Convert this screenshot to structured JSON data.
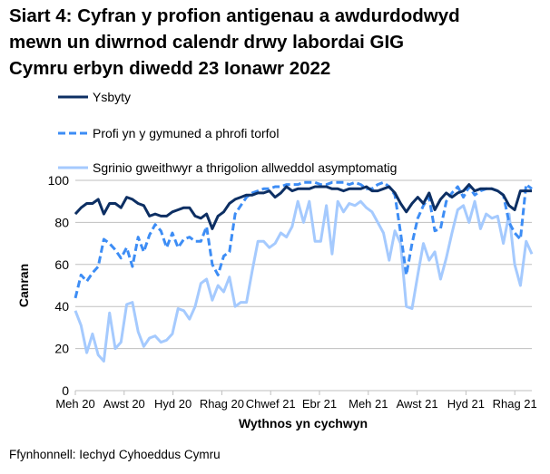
{
  "title_lines": [
    "Siart 4: Cyfran y profion antigenau a awdurdodwyd",
    "mewn un diwrnod calendr drwy labordai GIG",
    "Cymru erbyn diwedd 23 Ionawr 2022"
  ],
  "source": "Ffynhonnell: Iechyd Cyhoeddus Cymru",
  "chart_data": {
    "type": "line",
    "title": "Siart 4: Cyfran y profion antigenau a awdurdodwyd mewn un diwrnod calendr drwy labordai GIG Cymru erbyn diwedd 23 Ionawr 2022",
    "xlabel": "Wythnos yn cychwyn",
    "ylabel": "Canran",
    "ylim": [
      0,
      100
    ],
    "yticks": [
      0,
      20,
      40,
      60,
      80,
      100
    ],
    "xtick_labels": [
      "Meh 20",
      "Awst 20",
      "Hyd 20",
      "Rhag 20",
      "Chwef 21",
      "Ebr 21",
      "Meh 21",
      "Awst 21",
      "Hyd 21",
      "Rhag 21"
    ],
    "grid": "horizontal",
    "legend_placement": "top",
    "series": [
      {
        "name": "Ysbyty",
        "color": "#0d2f63",
        "style": "solid",
        "values": [
          84,
          87,
          89,
          89,
          91,
          84,
          89,
          89,
          87,
          92,
          91,
          89,
          88,
          83,
          84,
          83,
          83,
          85,
          86,
          87,
          87,
          83,
          82,
          84,
          77,
          83,
          85,
          89,
          91,
          92,
          93,
          93,
          94,
          94,
          95,
          92,
          94,
          97,
          95,
          96,
          96,
          96,
          97,
          97,
          97,
          96,
          96,
          95,
          96,
          96,
          96,
          97,
          95,
          95,
          96,
          97,
          94,
          89,
          85,
          89,
          92,
          89,
          94,
          86,
          91,
          94,
          92,
          94,
          95,
          98,
          95,
          96,
          96,
          96,
          95,
          93,
          88,
          86,
          95,
          95,
          95
        ]
      },
      {
        "name": "Profi yn y gymuned a phrofi torfol",
        "color": "#3d8df5",
        "style": "dashed",
        "values": [
          44,
          55,
          52,
          56,
          59,
          72,
          70,
          67,
          63,
          68,
          59,
          73,
          66,
          74,
          79,
          76,
          68,
          75,
          68,
          72,
          73,
          71,
          71,
          78,
          60,
          55,
          64,
          66,
          84,
          88,
          92,
          94,
          95,
          96,
          96,
          97,
          97,
          98,
          98,
          98,
          99,
          99,
          99,
          98,
          98,
          99,
          99,
          99,
          98,
          99,
          98,
          96,
          96,
          98,
          99,
          97,
          93,
          75,
          55,
          70,
          82,
          88,
          92,
          76,
          77,
          90,
          94,
          97,
          92,
          97,
          93,
          95,
          96,
          96,
          95,
          93,
          80,
          75,
          72,
          98,
          96
        ]
      },
      {
        "name": "Sgrinio gweithwyr a thrigolion allweddol asymptomatig",
        "color": "#a5cafe",
        "style": "solid",
        "values": [
          38,
          31,
          18,
          27,
          17,
          14,
          37,
          20,
          23,
          41,
          42,
          28,
          21,
          25,
          26,
          23,
          24,
          27,
          39,
          38,
          34,
          40,
          51,
          53,
          43,
          50,
          47,
          54,
          40,
          42,
          42,
          57,
          71,
          71,
          68,
          70,
          75,
          73,
          78,
          90,
          80,
          90,
          71,
          71,
          88,
          65,
          90,
          85,
          89,
          88,
          90,
          87,
          85,
          80,
          75,
          62,
          76,
          70,
          40,
          39,
          55,
          70,
          62,
          66,
          53,
          63,
          75,
          86,
          88,
          80,
          90,
          77,
          84,
          82,
          83,
          70,
          84,
          60,
          50,
          71,
          65
        ]
      }
    ]
  }
}
